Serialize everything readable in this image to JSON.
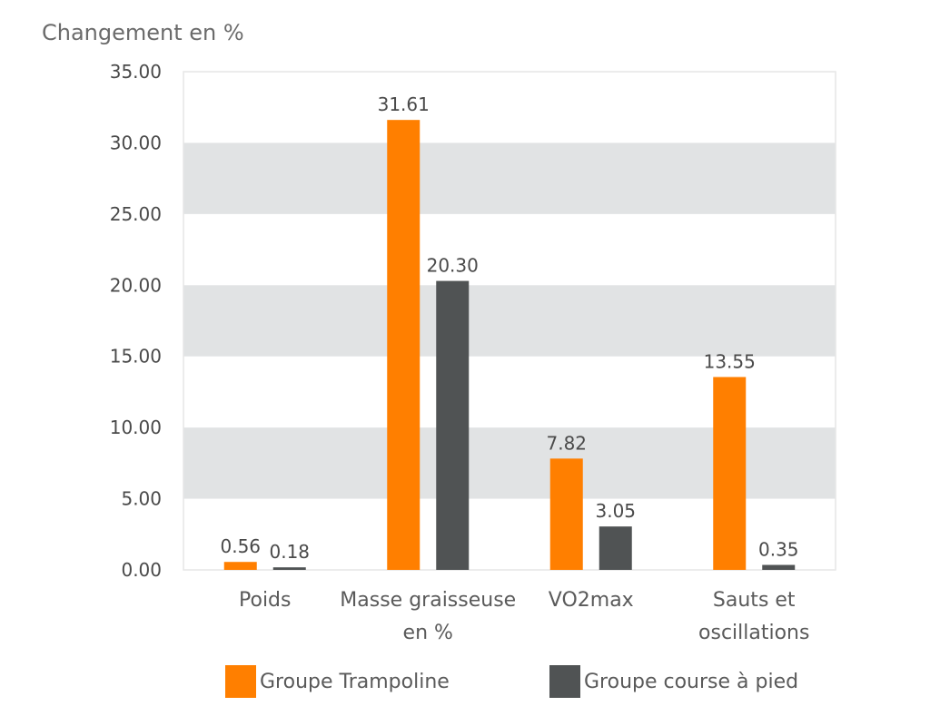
{
  "chart_data": {
    "type": "bar",
    "title": "",
    "ylabel": "Changement en %",
    "xlabel": "",
    "ylim": [
      0,
      35
    ],
    "yticks": [
      "0.00",
      "5.00",
      "10.00",
      "15.00",
      "20.00",
      "25.00",
      "30.00",
      "35.00"
    ],
    "ytick_values": [
      0,
      5,
      10,
      15,
      20,
      25,
      30,
      35
    ],
    "grid": "alternating horizontal bands",
    "categories": [
      [
        "Poids"
      ],
      [
        "Masse graisseuse",
        "en %"
      ],
      [
        "VO2max"
      ],
      [
        "Sauts et",
        "oscillations"
      ]
    ],
    "series": [
      {
        "name": "Groupe Trampoline",
        "color": "#FF7F00",
        "values": [
          0.56,
          31.61,
          7.82,
          13.55
        ],
        "labels": [
          "0.56",
          "31.61",
          "7.82",
          "13.55"
        ]
      },
      {
        "name": "Groupe course à pied",
        "color": "#505354",
        "values": [
          0.18,
          20.3,
          3.05,
          0.35
        ],
        "labels": [
          "0.18",
          "20.30",
          "3.05",
          "0.35"
        ]
      }
    ],
    "legend": "bottom",
    "band_color": "#E1E3E4"
  }
}
